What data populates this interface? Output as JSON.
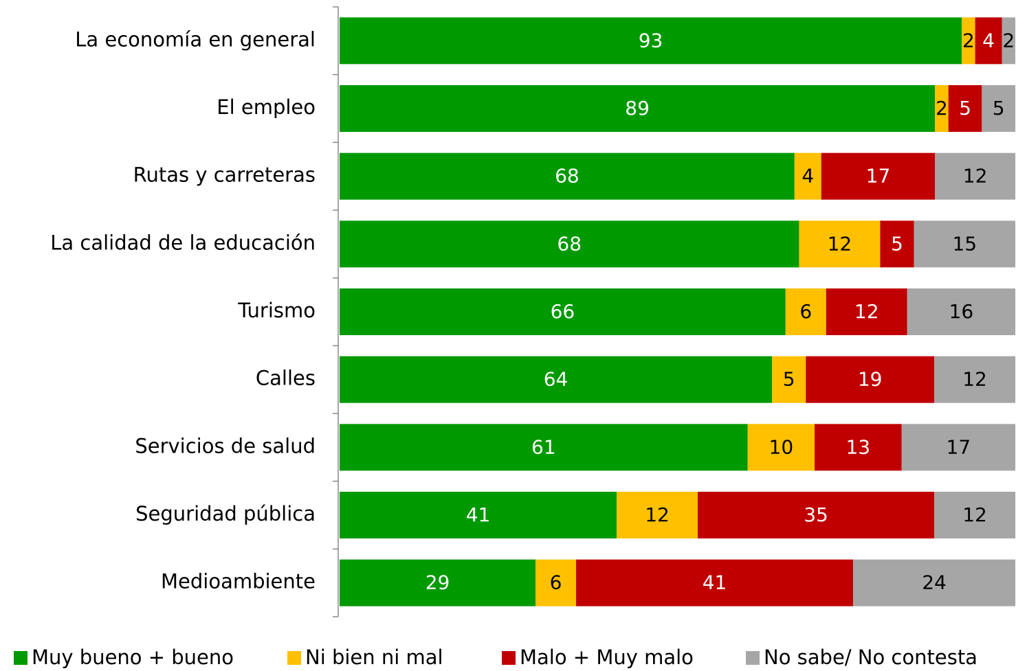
{
  "chart_data": {
    "type": "bar",
    "orientation": "horizontal",
    "stacked": "percent",
    "categories": [
      "La economía en general",
      "El empleo",
      "Rutas y carreteras",
      "La calidad de la educación",
      "Turismo",
      "Calles",
      "Servicios de salud",
      "Seguridad pública",
      "Medioambiente"
    ],
    "series": [
      {
        "name": "Muy bueno + bueno",
        "color": "#009900",
        "label_color": "#ffffff",
        "values": [
          93,
          89,
          68,
          68,
          66,
          64,
          61,
          41,
          29
        ]
      },
      {
        "name": "Ni bien ni mal",
        "color": "#ffc000",
        "label_color": "#000000",
        "values": [
          2,
          2,
          4,
          12,
          6,
          5,
          10,
          12,
          6
        ]
      },
      {
        "name": "Malo + Muy malo",
        "color": "#c00000",
        "label_color": "#ffffff",
        "values": [
          4,
          5,
          17,
          5,
          12,
          19,
          13,
          35,
          41
        ]
      },
      {
        "name": "No sabe/ No contesta",
        "color": "#a6a6a6",
        "label_color": "#000000",
        "values": [
          2,
          5,
          12,
          15,
          16,
          12,
          17,
          12,
          24
        ]
      }
    ],
    "legend": "bottom"
  }
}
